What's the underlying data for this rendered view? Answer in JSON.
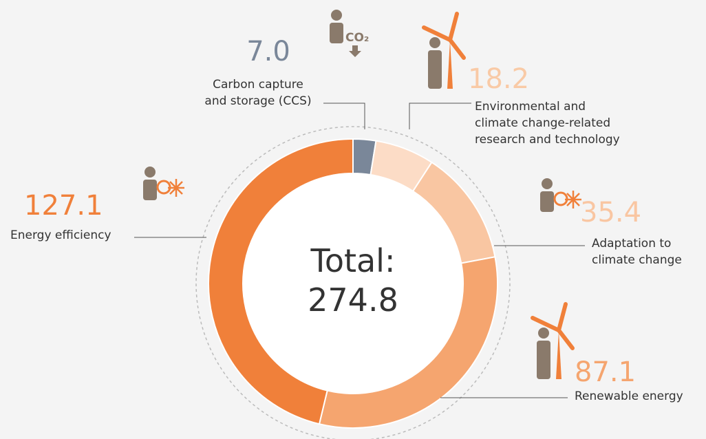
{
  "chart_data": {
    "type": "donut",
    "categories": [
      "Carbon capture\nand storage (CCS)",
      "Environmental and\nclimate change-related\nresearch and technology",
      "Adaptation to\nclimate change",
      "Renewable energy",
      "Energy efficiency"
    ],
    "values": [
      7.0,
      18.2,
      35.4,
      87.1,
      127.1
    ],
    "value_labels": [
      "7.0",
      "18.2",
      "35.4",
      "87.1",
      "127.1"
    ],
    "colors": [
      "#7a8799",
      "#fcdcc6",
      "#f9c6a2",
      "#f5a56f",
      "#f0803a"
    ],
    "total_label": "Total:",
    "total": 274.8
  }
}
